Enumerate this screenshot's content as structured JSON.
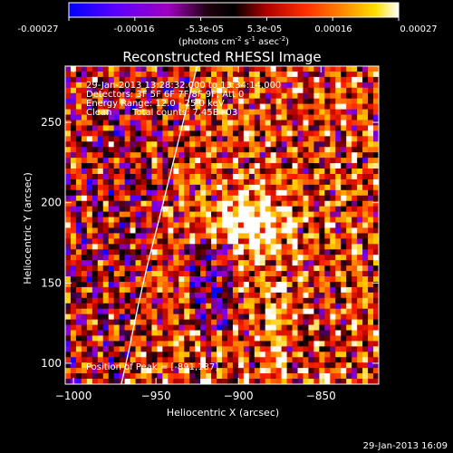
{
  "colorbar": {
    "tick_labels": [
      "-0.00027",
      "-0.00016",
      "-5.3e-05",
      "5.3e-05",
      "0.00016",
      "0.00027"
    ],
    "unit_label": "(photons cm",
    "unit_exp1": "-2",
    "unit_mid": " s",
    "unit_exp2": "-1",
    "unit_end": " asec",
    "unit_exp3": "-2",
    "unit_close": ")",
    "range": [
      -0.00027,
      0.00027
    ],
    "colormap": [
      "#0000ff",
      "#5a00ff",
      "#a000c0",
      "#000000",
      "#b00000",
      "#ff2000",
      "#ff8000",
      "#ffd000",
      "#ffffff"
    ]
  },
  "annotations": {
    "time_range": "29-Jan-2013 13:28:32.000 to 13:34:14.000",
    "detectors": "Detectors: 3F 5F 6F 7F 8F 9F, Att 0",
    "energy": "Energy Range: 12.0 - 25.0 keV",
    "clean_method": "Clean",
    "total_counts": "Total counts: 7.45E+03",
    "peak": "Position of Peak = [-891,187]"
  },
  "footer": {
    "timestamp": "29-Jan-2013 16:09"
  },
  "chart_data": {
    "type": "heatmap",
    "title": "Reconstructed RHESSI Image",
    "xlabel": "Heliocentric X (arcsec)",
    "ylabel": "Heliocentric Y (arcsec)",
    "xlim": [
      -1005,
      -815
    ],
    "ylim": [
      87,
      285
    ],
    "x_ticks": [
      -1000,
      -950,
      -900,
      -850
    ],
    "x_tick_labels": [
      "−1000",
      "−950",
      "−900",
      "−850"
    ],
    "y_ticks": [
      100,
      150,
      200,
      250
    ],
    "y_tick_labels": [
      "100",
      "150",
      "200",
      "250"
    ],
    "peak_position": [
      -891,
      187
    ],
    "limb_curve": [
      [
        -971,
        87
      ],
      [
        -966,
        110
      ],
      [
        -961,
        135
      ],
      [
        -955,
        162
      ],
      [
        -948,
        190
      ],
      [
        -942,
        215
      ],
      [
        -936,
        240
      ],
      [
        -930,
        265
      ],
      [
        -925,
        285
      ]
    ]
  }
}
